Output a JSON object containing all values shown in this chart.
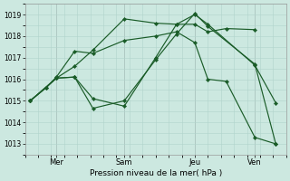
{
  "background_color": "#cce8e0",
  "grid_color": "#b0d4cc",
  "line_color": "#1a5c28",
  "marker_color": "#1a5c28",
  "xlabel": "Pression niveau de la mer( hPa )",
  "ylim": [
    1012.5,
    1019.5
  ],
  "yticks": [
    1013,
    1014,
    1015,
    1016,
    1017,
    1018,
    1019
  ],
  "xtick_labels": [
    "Mer",
    "Sam",
    "Jeu",
    "Ven"
  ],
  "xtick_positions": [
    0.12,
    0.38,
    0.65,
    0.88
  ],
  "series": [
    {
      "x": [
        0.02,
        0.08,
        0.12,
        0.19,
        0.26,
        0.38,
        0.5,
        0.58,
        0.65,
        0.7,
        0.77,
        0.88,
        0.96
      ],
      "y": [
        1015.0,
        1015.6,
        1016.1,
        1017.3,
        1017.2,
        1017.8,
        1018.0,
        1018.2,
        1017.7,
        1016.0,
        1015.9,
        1013.3,
        1013.0
      ]
    },
    {
      "x": [
        0.02,
        0.08,
        0.12,
        0.19,
        0.26,
        0.38,
        0.5,
        0.58,
        0.65,
        0.7,
        0.77,
        0.88,
        0.96
      ],
      "y": [
        1015.0,
        1015.6,
        1016.05,
        1016.6,
        1017.35,
        1018.8,
        1018.6,
        1018.55,
        1018.55,
        1018.2,
        1018.35,
        1018.3,
        null
      ]
    },
    {
      "x": [
        0.02,
        0.12,
        0.19,
        0.26,
        0.38,
        0.5,
        0.58,
        0.65,
        0.7,
        0.88,
        0.96
      ],
      "y": [
        1015.0,
        1016.05,
        1016.1,
        1015.1,
        1014.75,
        1017.0,
        1018.55,
        1019.0,
        1018.55,
        1016.65,
        1014.9
      ]
    },
    {
      "x": [
        0.02,
        0.12,
        0.19,
        0.26,
        0.38,
        0.5,
        0.58,
        0.65,
        0.7,
        0.88,
        0.96
      ],
      "y": [
        1015.0,
        1016.05,
        1016.1,
        1014.65,
        1015.0,
        1016.9,
        1018.1,
        1019.05,
        1018.45,
        1016.7,
        1013.0
      ]
    }
  ]
}
